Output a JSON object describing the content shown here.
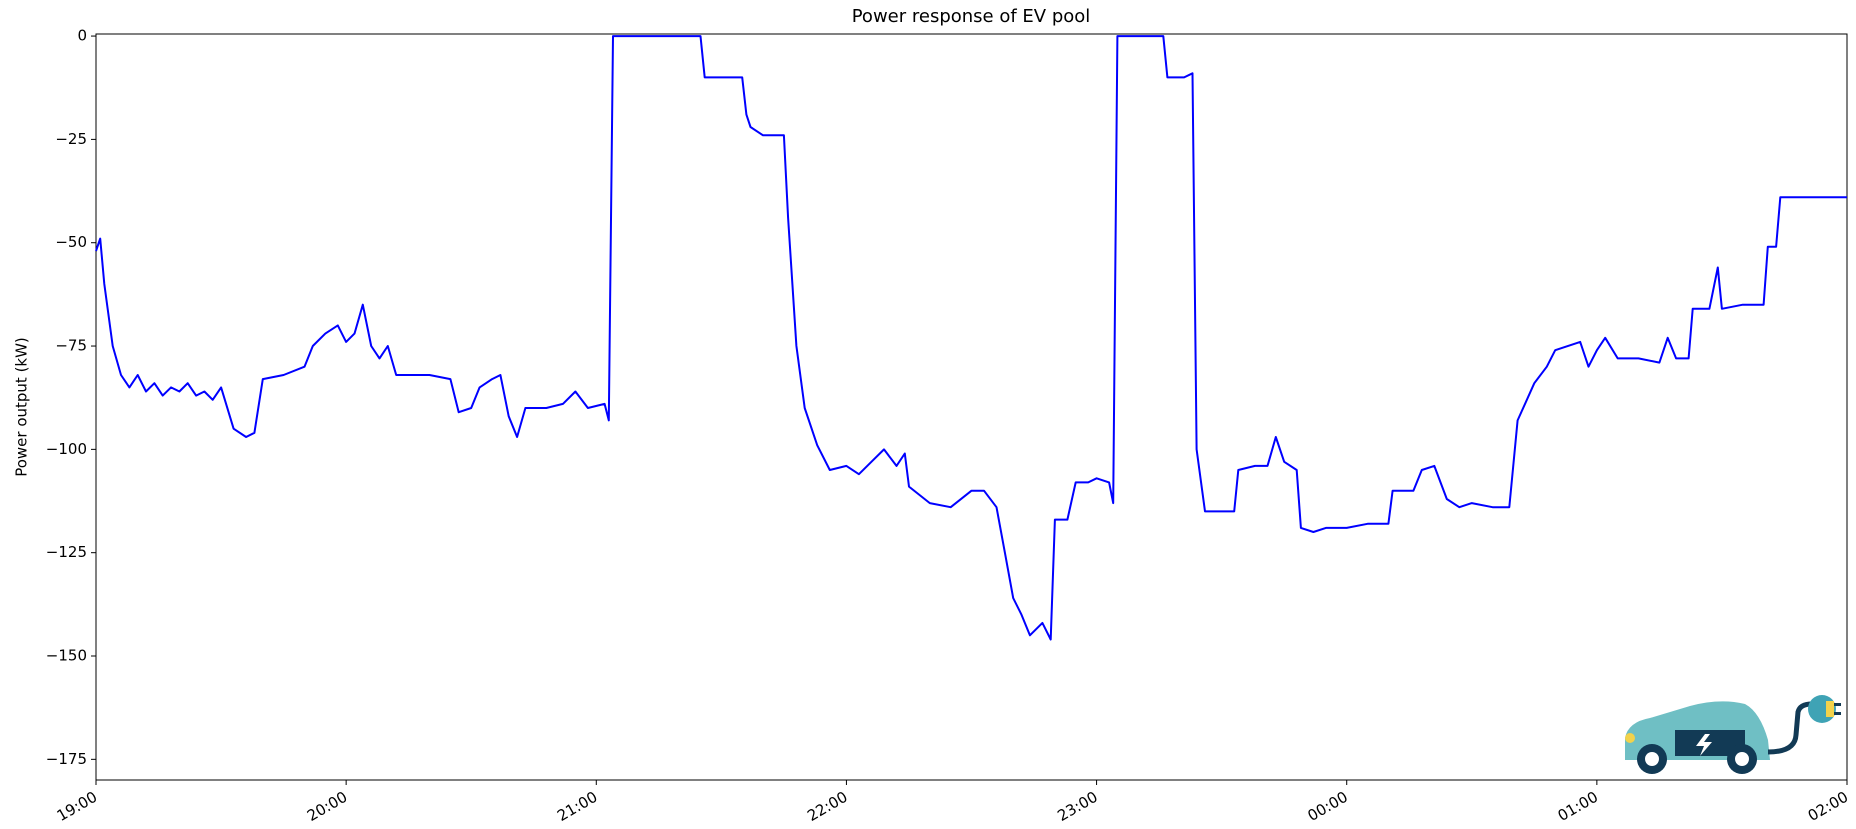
{
  "chart_data": {
    "type": "line",
    "title": "Power response of EV pool",
    "y_label": "Power output (kW)",
    "color": "#0000ff",
    "grid": false,
    "x": [
      "19:00",
      "19:01",
      "19:02",
      "19:04",
      "19:06",
      "19:08",
      "19:10",
      "19:12",
      "19:14",
      "19:16",
      "19:18",
      "19:20",
      "19:22",
      "19:24",
      "19:26",
      "19:28",
      "19:30",
      "19:33",
      "19:36",
      "19:38",
      "19:40",
      "19:45",
      "19:50",
      "19:52",
      "19:55",
      "19:58",
      "20:00",
      "20:02",
      "20:04",
      "20:06",
      "20:08",
      "20:10",
      "20:12",
      "20:16",
      "20:20",
      "20:25",
      "20:27",
      "20:30",
      "20:32",
      "20:35",
      "20:37",
      "20:39",
      "20:41",
      "20:43",
      "20:48",
      "20:52",
      "20:55",
      "20:58",
      "21:02",
      "21:03",
      "21:04",
      "21:10",
      "21:20",
      "21:25",
      "21:26",
      "21:30",
      "21:35",
      "21:36",
      "21:37",
      "21:40",
      "21:45",
      "21:46",
      "21:48",
      "21:50",
      "21:53",
      "21:56",
      "22:00",
      "22:03",
      "22:06",
      "22:09",
      "22:12",
      "22:14",
      "22:15",
      "22:20",
      "22:25",
      "22:30",
      "22:33",
      "22:36",
      "22:38",
      "22:40",
      "22:42",
      "22:44",
      "22:47",
      "22:49",
      "22:50",
      "22:53",
      "22:55",
      "22:58",
      "23:00",
      "23:03",
      "23:04",
      "23:05",
      "23:10",
      "23:16",
      "23:17",
      "23:21",
      "23:23",
      "23:24",
      "23:26",
      "23:30",
      "23:33",
      "23:34",
      "23:38",
      "23:41",
      "23:43",
      "23:45",
      "23:48",
      "23:49",
      "23:52",
      "23:55",
      "00:00",
      "00:05",
      "00:10",
      "00:11",
      "00:16",
      "00:18",
      "00:21",
      "00:24",
      "00:27",
      "00:30",
      "00:35",
      "00:39",
      "00:41",
      "00:45",
      "00:48",
      "00:50",
      "00:56",
      "00:58",
      "01:00",
      "01:02",
      "01:05",
      "01:10",
      "01:15",
      "01:17",
      "01:19",
      "01:22",
      "01:23",
      "01:27",
      "01:29",
      "01:30",
      "01:35",
      "01:40",
      "01:41",
      "01:43",
      "01:44",
      "01:50",
      "02:00"
    ],
    "values": [
      -52,
      -49,
      -60,
      -75,
      -82,
      -85,
      -82,
      -86,
      -84,
      -87,
      -85,
      -86,
      -84,
      -87,
      -86,
      -88,
      -85,
      -95,
      -97,
      -96,
      -83,
      -82,
      -80,
      -75,
      -72,
      -70,
      -74,
      -72,
      -65,
      -75,
      -78,
      -75,
      -82,
      -82,
      -82,
      -83,
      -91,
      -90,
      -85,
      -83,
      -82,
      -92,
      -97,
      -90,
      -90,
      -89,
      -86,
      -90,
      -89,
      -93,
      0,
      0,
      0,
      0,
      -10,
      -10,
      -10,
      -19,
      -22,
      -24,
      -24,
      -44,
      -75,
      -90,
      -99,
      -105,
      -104,
      -106,
      -103,
      -100,
      -104,
      -101,
      -109,
      -113,
      -114,
      -110,
      -110,
      -114,
      -125,
      -136,
      -140,
      -145,
      -142,
      -146,
      -117,
      -117,
      -108,
      -108,
      -107,
      -108,
      -113,
      0,
      0,
      0,
      -10,
      -10,
      -9,
      -100,
      -115,
      -115,
      -115,
      -105,
      -104,
      -104,
      -97,
      -103,
      -105,
      -119,
      -120,
      -119,
      -119,
      -118,
      -118,
      -110,
      -110,
      -105,
      -104,
      -112,
      -114,
      -113,
      -114,
      -114,
      -93,
      -84,
      -80,
      -76,
      -74,
      -80,
      -76,
      -73,
      -78,
      -78,
      -79,
      -73,
      -78,
      -78,
      -66,
      -66,
      -56,
      -66,
      -65,
      -65,
      -51,
      -51,
      -39,
      -39,
      -39
    ],
    "xlim": [
      "19:00",
      "02:00"
    ],
    "xticks": [
      "19:00",
      "20:00",
      "21:00",
      "22:00",
      "23:00",
      "00:00",
      "01:00",
      "02:00"
    ],
    "ylim": [
      -180,
      0.5
    ],
    "yticks": [
      {
        "value": -175,
        "label": "−175"
      },
      {
        "value": -150,
        "label": "−150"
      },
      {
        "value": -125,
        "label": "−125"
      },
      {
        "value": -100,
        "label": "−100"
      },
      {
        "value": -75,
        "label": "−75"
      },
      {
        "value": -50,
        "label": "−50"
      },
      {
        "value": -25,
        "label": "−25"
      },
      0
    ]
  }
}
